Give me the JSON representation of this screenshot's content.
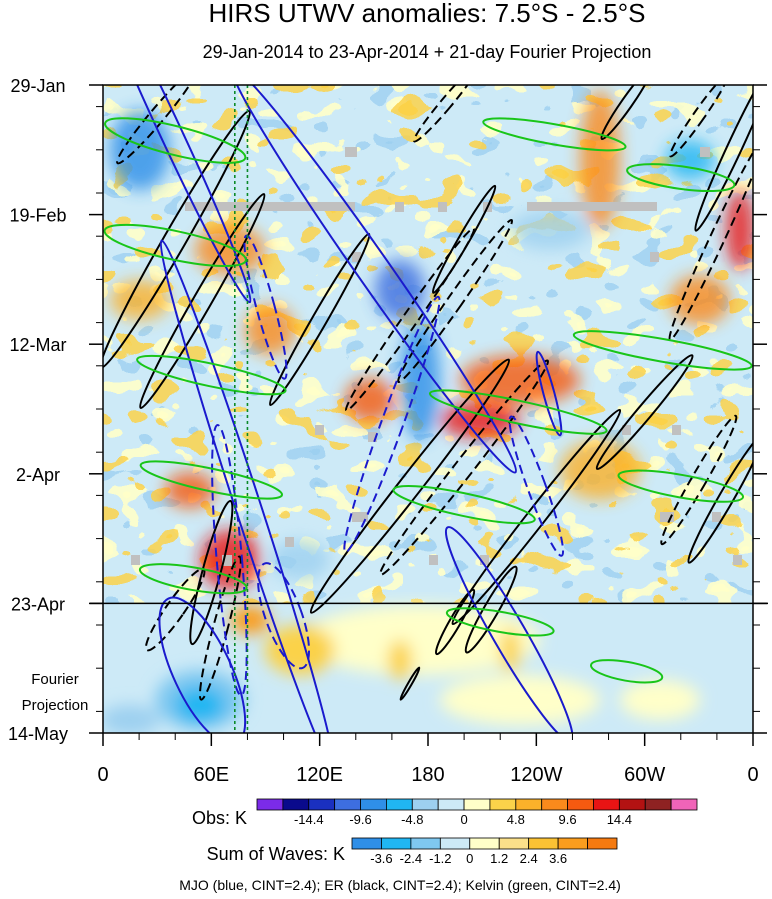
{
  "chart_data": {
    "type": "heatmap",
    "title": "HIRS UTWV anomalies: 7.5°S - 2.5°S",
    "subtitle": "29-Jan-2014 to 23-Apr-2014 + 21-day Fourier Projection",
    "xlabel": "",
    "ylabel": "",
    "x_ticks": [
      "0",
      "60E",
      "120E",
      "180",
      "120W",
      "60W",
      "0"
    ],
    "x_tick_values": [
      0,
      60,
      120,
      180,
      240,
      300,
      360
    ],
    "xlim": [
      0,
      360
    ],
    "y_ticks": [
      "29-Jan",
      "19-Feb",
      "12-Mar",
      "2-Apr",
      "23-Apr",
      "14-May"
    ],
    "y_tick_days": [
      0,
      21,
      42,
      63,
      84,
      105
    ],
    "ylim_days": [
      0,
      105
    ],
    "projection_start_day": 84,
    "projection_label": [
      "Fourier",
      "Projection"
    ],
    "reference_lines_lon": [
      73,
      80
    ],
    "obs_colorbar": {
      "label": "Obs: K",
      "tick_labels": [
        "-14.4",
        "-9.6",
        "-4.8",
        "0",
        "4.8",
        "9.6",
        "14.4"
      ],
      "colors": [
        "#7b2be8",
        "#0a0a8c",
        "#1a30c0",
        "#3d6ee0",
        "#2f8fe8",
        "#20b6f2",
        "#9dd0f0",
        "#cdeaf7",
        "#ffffc9",
        "#fbd24a",
        "#fbb12a",
        "#fa8a1c",
        "#f65a10",
        "#e81414",
        "#b31212",
        "#8e2222",
        "#f064b8"
      ]
    },
    "waves_colorbar": {
      "label": "Sum of Waves: K",
      "tick_labels": [
        "-3.6",
        "-2.4",
        "-1.2",
        "0",
        "1.2",
        "2.4",
        "3.6"
      ],
      "colors": [
        "#2f8fe8",
        "#20b6f2",
        "#7fc8f0",
        "#cdeaf7",
        "#ffffc9",
        "#fbe08a",
        "#fbc234",
        "#fa9d1e",
        "#f57a10"
      ]
    },
    "legend_text": "MJO (blue, CINT=2.4); ER (black, CINT=2.4); Kelvin (green, CINT=2.4)",
    "series": [
      {
        "name": "MJO",
        "color": "#1a1acd",
        "cint": 2.4
      },
      {
        "name": "ER",
        "color": "#000000",
        "cint": 2.4
      },
      {
        "name": "Kelvin",
        "color": "#19c519",
        "cint": 2.4
      }
    ],
    "mjo_contours": [
      {
        "lon": 38,
        "day": 8,
        "rx": 6,
        "ry": 30,
        "tilt": -25,
        "dashed": false
      },
      {
        "lon": 150,
        "day": 30,
        "rx": 9,
        "ry": 40,
        "tilt": -35,
        "dashed": false
      },
      {
        "lon": 80,
        "day": 68,
        "rx": 7,
        "ry": 45,
        "tilt": -18,
        "dashed": false
      },
      {
        "lon": 160,
        "day": 55,
        "rx": 6,
        "ry": 22,
        "tilt": 20,
        "dashed": true
      },
      {
        "lon": 70,
        "day": 77,
        "rx": 7,
        "ry": 22,
        "tilt": -5,
        "dashed": true
      },
      {
        "lon": 90,
        "day": 36,
        "rx": 5,
        "ry": 12,
        "tilt": -15,
        "dashed": true
      },
      {
        "lon": 225,
        "day": 89,
        "rx": 9,
        "ry": 20,
        "tilt": -30,
        "dashed": false
      },
      {
        "lon": 240,
        "day": 65,
        "rx": 5,
        "ry": 12,
        "tilt": -20,
        "dashed": true
      },
      {
        "lon": 247,
        "day": 50,
        "rx": 3,
        "ry": 7,
        "tilt": -15,
        "dashed": false
      },
      {
        "lon": 55,
        "day": 95,
        "rx": 16,
        "ry": 13,
        "tilt": -25,
        "dashed": false
      },
      {
        "lon": 100,
        "day": 86,
        "rx": 10,
        "ry": 9,
        "tilt": -20,
        "dashed": true
      }
    ],
    "er_contours": [
      {
        "lon": 40,
        "day": 25,
        "rx": 6,
        "ry": 24,
        "tilt": 30,
        "dashed": false
      },
      {
        "lon": 55,
        "day": 35,
        "rx": 5,
        "ry": 20,
        "tilt": 30,
        "dashed": false
      },
      {
        "lon": 120,
        "day": 38,
        "rx": 4,
        "ry": 16,
        "tilt": 30,
        "dashed": false
      },
      {
        "lon": 170,
        "day": 38,
        "rx": 4,
        "ry": 18,
        "tilt": 35,
        "dashed": true
      },
      {
        "lon": 195,
        "day": 35,
        "rx": 4,
        "ry": 16,
        "tilt": 35,
        "dashed": true
      },
      {
        "lon": 170,
        "day": 65,
        "rx": 6,
        "ry": 26,
        "tilt": 38,
        "dashed": false
      },
      {
        "lon": 200,
        "day": 62,
        "rx": 5,
        "ry": 22,
        "tilt": 38,
        "dashed": true
      },
      {
        "lon": 240,
        "day": 70,
        "rx": 5,
        "ry": 22,
        "tilt": 38,
        "dashed": false
      },
      {
        "lon": 300,
        "day": 53,
        "rx": 4,
        "ry": 12,
        "tilt": 40,
        "dashed": false
      },
      {
        "lon": 330,
        "day": 64,
        "rx": 4,
        "ry": 12,
        "tilt": 30,
        "dashed": true
      },
      {
        "lon": 345,
        "day": 67,
        "rx": 4,
        "ry": 12,
        "tilt": 30,
        "dashed": false
      },
      {
        "lon": 340,
        "day": 25,
        "rx": 4,
        "ry": 18,
        "tilt": 25,
        "dashed": true
      },
      {
        "lon": 350,
        "day": 10,
        "rx": 4,
        "ry": 15,
        "tilt": 25,
        "dashed": false
      },
      {
        "lon": 330,
        "day": 5,
        "rx": 3,
        "ry": 8,
        "tilt": 35,
        "dashed": true
      },
      {
        "lon": 290,
        "day": 3,
        "rx": 3,
        "ry": 7,
        "tilt": 35,
        "dashed": false
      },
      {
        "lon": 60,
        "day": 79,
        "rx": 5,
        "ry": 12,
        "tilt": 15,
        "dashed": false
      },
      {
        "lon": 65,
        "day": 88,
        "rx": 4,
        "ry": 12,
        "tilt": 15,
        "dashed": true
      },
      {
        "lon": 40,
        "day": 85,
        "rx": 5,
        "ry": 8,
        "tilt": 35,
        "dashed": true
      },
      {
        "lon": 215,
        "day": 85,
        "rx": 4,
        "ry": 8,
        "tilt": 30,
        "dashed": false
      },
      {
        "lon": 195,
        "day": 87,
        "rx": 3,
        "ry": 6,
        "tilt": 30,
        "dashed": false
      },
      {
        "lon": 200,
        "day": 25,
        "rx": 3,
        "ry": 10,
        "tilt": 30,
        "dashed": false
      },
      {
        "lon": 30,
        "day": 5,
        "rx": 4,
        "ry": 10,
        "tilt": 40,
        "dashed": true
      },
      {
        "lon": 190,
        "day": 3,
        "rx": 3,
        "ry": 8,
        "tilt": 40,
        "dashed": true
      },
      {
        "lon": 170,
        "day": 97,
        "rx": 1,
        "ry": 3,
        "tilt": 30,
        "dashed": false
      }
    ],
    "kelvin_contours": [
      {
        "lon": 40,
        "day": 9,
        "rx": 40,
        "ry": 2,
        "tilt": 14
      },
      {
        "lon": 40,
        "day": 26,
        "rx": 40,
        "ry": 2,
        "tilt": 12
      },
      {
        "lon": 60,
        "day": 47,
        "rx": 42,
        "ry": 1.5,
        "tilt": 12
      },
      {
        "lon": 60,
        "day": 64,
        "rx": 40,
        "ry": 1.5,
        "tilt": 12
      },
      {
        "lon": 50,
        "day": 80,
        "rx": 30,
        "ry": 1.5,
        "tilt": 10
      },
      {
        "lon": 230,
        "day": 53,
        "rx": 50,
        "ry": 1.5,
        "tilt": 12
      },
      {
        "lon": 310,
        "day": 43,
        "rx": 50,
        "ry": 1.5,
        "tilt": 10
      },
      {
        "lon": 200,
        "day": 68,
        "rx": 40,
        "ry": 1.5,
        "tilt": 12
      },
      {
        "lon": 320,
        "day": 65,
        "rx": 35,
        "ry": 1.5,
        "tilt": 10
      },
      {
        "lon": 320,
        "day": 15,
        "rx": 30,
        "ry": 1.5,
        "tilt": 8
      },
      {
        "lon": 250,
        "day": 8,
        "rx": 40,
        "ry": 1.3,
        "tilt": 10
      },
      {
        "lon": 220,
        "day": 87,
        "rx": 30,
        "ry": 1.3,
        "tilt": 10
      },
      {
        "lon": 290,
        "day": 95,
        "rx": 20,
        "ry": 1.2,
        "tilt": 10
      }
    ]
  }
}
